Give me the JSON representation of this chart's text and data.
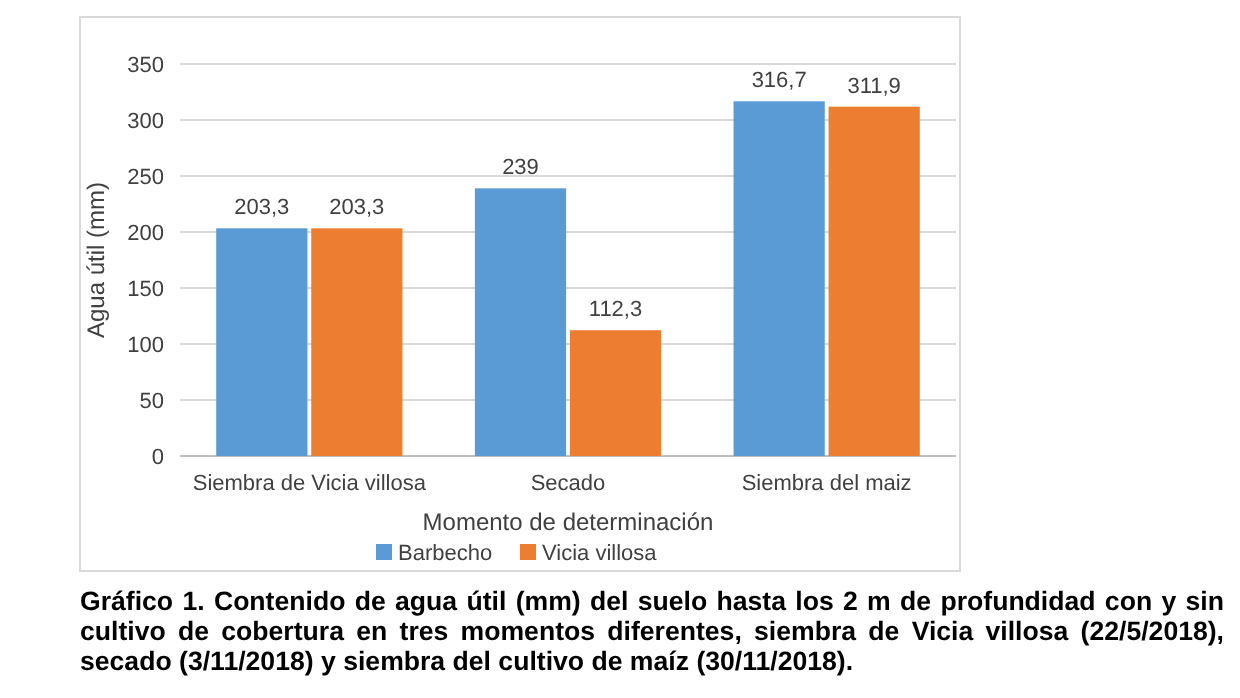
{
  "chart_data": {
    "type": "bar",
    "xlabel": "Momento de determinación",
    "ylabel": "Agua útil (mm)",
    "categories": [
      "Siembra de Vicia villosa",
      "Secado",
      "Siembra del maiz"
    ],
    "series": [
      {
        "name": "Barbecho",
        "color": "#5b9bd5",
        "values": [
          203.3,
          239,
          316.7
        ],
        "value_labels": [
          "203,3",
          "239",
          "316,7"
        ]
      },
      {
        "name": "Vicia villosa",
        "color": "#ed7d31",
        "values": [
          203.3,
          112.3,
          311.9
        ],
        "value_labels": [
          "203,3",
          "112,3",
          "311,9"
        ]
      }
    ],
    "ylim": [
      0,
      350
    ],
    "yticks": [
      0,
      50,
      100,
      150,
      200,
      250,
      300,
      350
    ],
    "grid": "y",
    "legend": "bottom",
    "annotations": [
      "Gráfico 1. Contenido de agua útil (mm) del suelo hasta los 2 m de profundidad con y sin cultivo de cobertura en tres momentos diferentes, siembra de Vicia villosa (22/5/2018), secado (3/11/2018) y siembra del cultivo de maíz (30/11/2018)."
    ]
  }
}
